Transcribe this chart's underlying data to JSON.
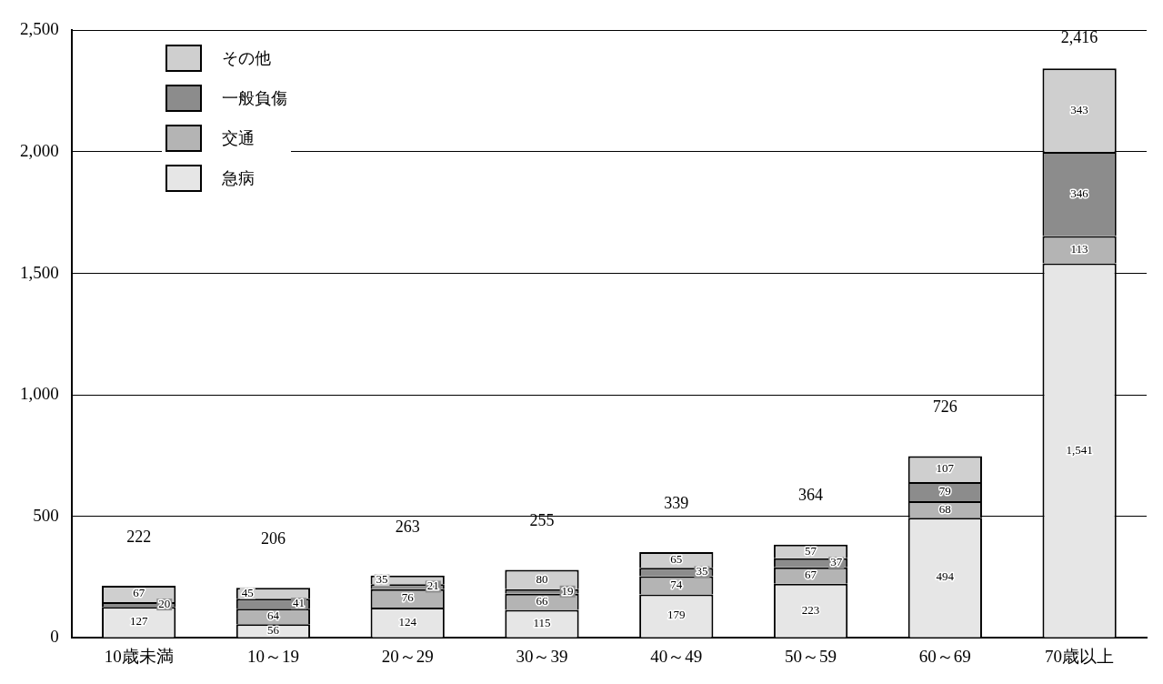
{
  "chart_data": {
    "type": "bar",
    "stacked": true,
    "categories": [
      "10歳未満",
      "10～19",
      "20～29",
      "30～39",
      "40～49",
      "50～59",
      "60～69",
      "70歳以上"
    ],
    "series": [
      {
        "name": "急病",
        "color": "#e6e6e6",
        "values": [
          127,
          56,
          124,
          115,
          179,
          223,
          494,
          1541
        ],
        "value_labels": [
          "127",
          "56",
          "124",
          "115",
          "179",
          "223",
          "494",
          "1,541"
        ]
      },
      {
        "name": "交通",
        "color": "#b4b4b4",
        "values": [
          null,
          64,
          76,
          66,
          74,
          67,
          68,
          113
        ],
        "value_labels": [
          null,
          "64",
          "76",
          "66",
          "74",
          "67",
          "68",
          "113"
        ]
      },
      {
        "name": "一般負傷",
        "color": "#8c8c8c",
        "values": [
          20,
          41,
          21,
          19,
          35,
          37,
          79,
          346
        ],
        "value_labels": [
          "20",
          "41",
          "21",
          "19",
          "35",
          "37",
          "79",
          "346"
        ]
      },
      {
        "name": "その他",
        "color": "#cfcfcf",
        "values": [
          67,
          45,
          35,
          80,
          65,
          57,
          107,
          343
        ],
        "value_labels": [
          "67",
          "45",
          "35",
          "80",
          "65",
          "57",
          "107",
          "343"
        ]
      }
    ],
    "annotations": [
      "222",
      "206",
      "263",
      "255",
      "339",
      "364",
      "726",
      "2,416"
    ],
    "ylim": [
      0,
      2500
    ],
    "yticks": [
      0,
      500,
      {
        "value": 1000,
        "label": "1,000"
      },
      {
        "value": 1500,
        "label": "1,500"
      },
      {
        "value": 2000,
        "label": "2,000"
      },
      {
        "value": 2500,
        "label": "2,500"
      }
    ],
    "grid": "y",
    "legend": "top left"
  }
}
